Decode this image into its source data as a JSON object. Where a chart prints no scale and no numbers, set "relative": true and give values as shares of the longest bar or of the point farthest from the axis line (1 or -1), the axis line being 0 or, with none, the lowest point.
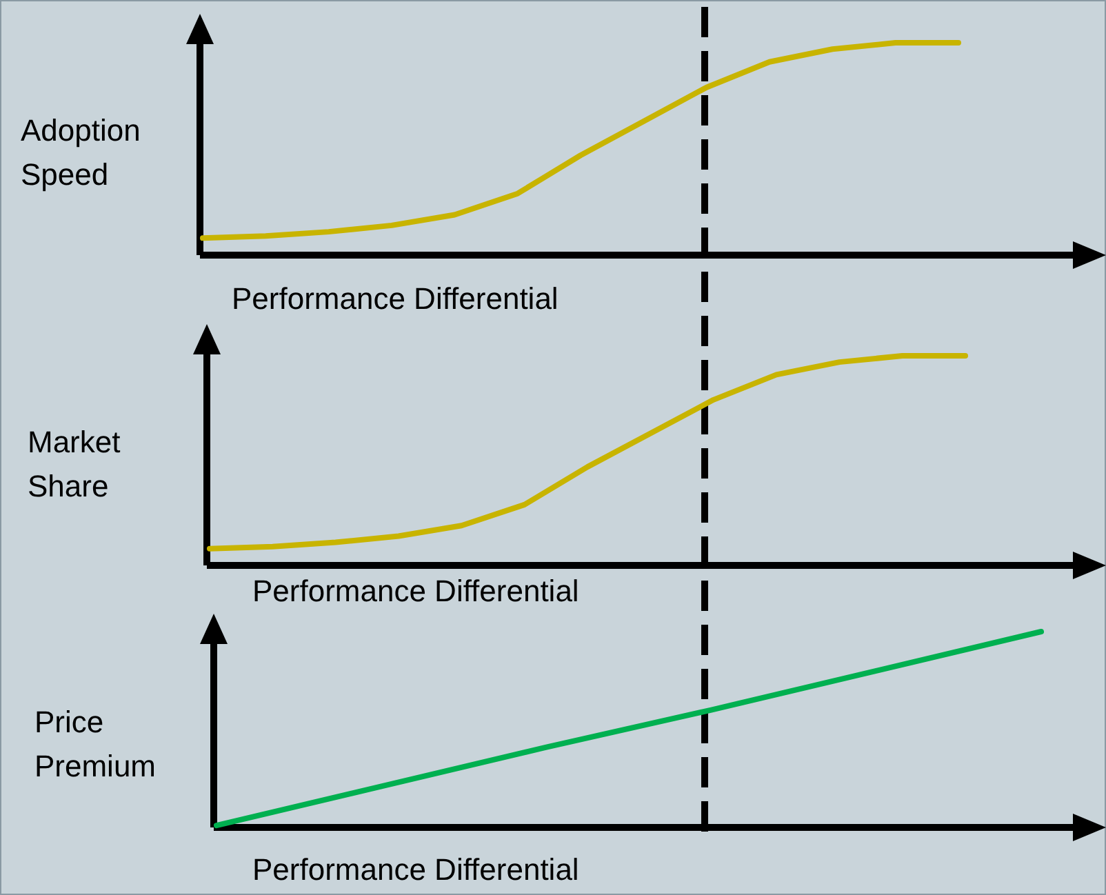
{
  "chart_data": [
    {
      "type": "line",
      "ylabel": "Adoption Speed",
      "xlabel": "Performance Differential",
      "relative": true,
      "categories": [
        null,
        null,
        null,
        null,
        null,
        null,
        null,
        null,
        null,
        null,
        null,
        null,
        null
      ],
      "series": [
        {
          "color": "#c8b400",
          "values": [
            0.08,
            0.09,
            0.11,
            0.14,
            0.19,
            0.29,
            0.47,
            0.63,
            0.79,
            0.91,
            0.97,
            1.0,
            1.0
          ]
        }
      ]
    },
    {
      "type": "line",
      "ylabel": "Market Share",
      "xlabel": "Performance Differential",
      "relative": true,
      "categories": [
        null,
        null,
        null,
        null,
        null,
        null,
        null,
        null,
        null,
        null,
        null,
        null,
        null
      ],
      "series": [
        {
          "color": "#c8b400",
          "values": [
            0.08,
            0.09,
            0.11,
            0.14,
            0.19,
            0.29,
            0.47,
            0.63,
            0.79,
            0.91,
            0.97,
            1.0,
            1.0
          ]
        }
      ]
    },
    {
      "type": "line",
      "ylabel": "Price Premium",
      "xlabel": "Performance Differential",
      "relative": true,
      "categories": [
        null,
        null,
        null,
        null,
        null,
        null
      ],
      "series": [
        {
          "color": "#00b050",
          "values": [
            0.01,
            0.21,
            0.41,
            0.6,
            0.8,
            1.0
          ]
        }
      ]
    }
  ]
}
